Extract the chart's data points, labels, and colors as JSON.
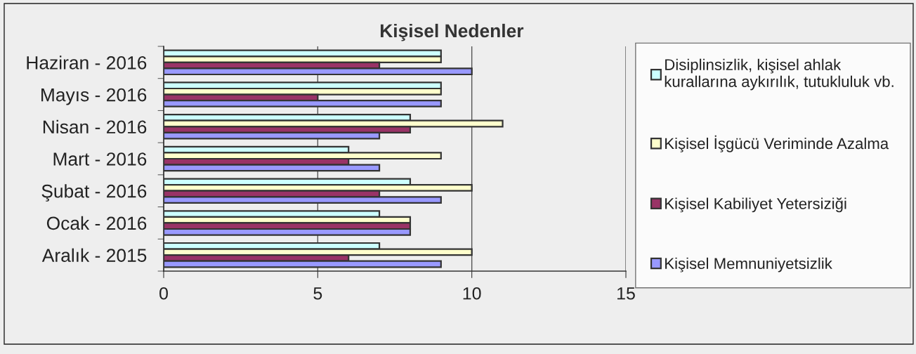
{
  "chart_data": {
    "type": "bar",
    "orientation": "horizontal",
    "title": "Kişisel Nedenler",
    "categories": [
      "Haziran - 2016",
      "Mayıs - 2016",
      "Nisan - 2016",
      "Mart - 2016",
      "Şubat - 2016",
      "Ocak - 2016",
      "Aralık - 2015"
    ],
    "series": [
      {
        "name": "Disiplinsizlik, kişisel ahlak\nkurallarına aykırılık, tutukluluk vb.",
        "color": "#ccffff",
        "values": [
          9,
          9,
          8,
          6,
          8,
          7,
          7
        ]
      },
      {
        "name": "Kişisel İşgücü Veriminde Azalma",
        "color": "#ffffcc",
        "values": [
          9,
          9,
          11,
          9,
          10,
          8,
          10
        ]
      },
      {
        "name": "Kişisel Kabiliyet Yetersiziği",
        "color": "#993366",
        "values": [
          7,
          5,
          8,
          6,
          7,
          8,
          6
        ]
      },
      {
        "name": "Kişisel Memnuniyetsizlik",
        "color": "#9999ff",
        "values": [
          10,
          9,
          7,
          7,
          9,
          8,
          9
        ]
      }
    ],
    "xlim": [
      0,
      15
    ],
    "xticks": [
      0,
      5,
      10,
      15
    ],
    "grid": "x",
    "legend": "right"
  }
}
